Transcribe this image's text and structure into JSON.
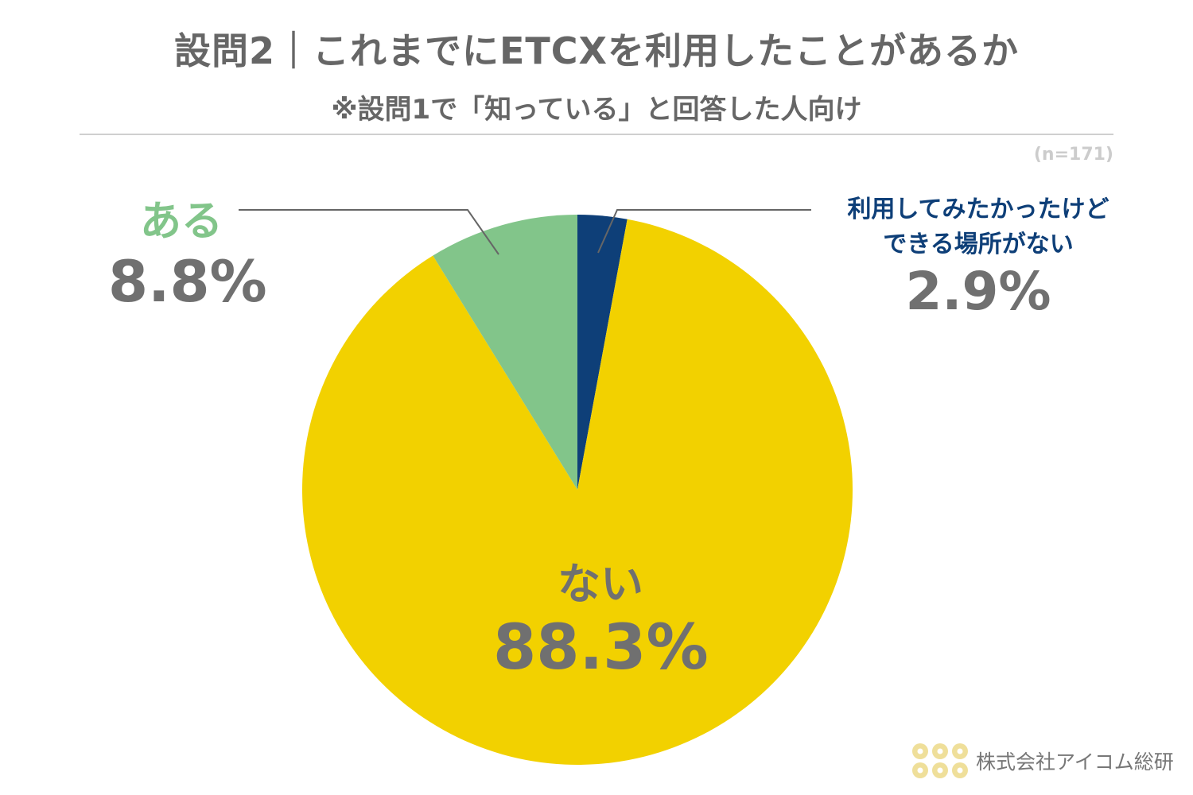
{
  "header": {
    "title": "設問2｜これまでにETCXを利用したことがあるか",
    "subtitle": "※設問1で「知っている」と回答した人向け",
    "sample_size": "(n=171)"
  },
  "chart_data": {
    "type": "pie",
    "title": "設問2｜これまでにETCXを利用したことがあるか",
    "subtitle": "※設問1で「知っている」と回答した人向け",
    "n": 171,
    "slices": [
      {
        "name": "利用してみたかったけどできる場所がない",
        "value": 2.9,
        "value_label": "2.9%",
        "color": "#0e3f78"
      },
      {
        "name": "ない",
        "value": 88.3,
        "value_label": "88.3%",
        "color": "#f2d100"
      },
      {
        "name": "ある",
        "value": 8.8,
        "value_label": "8.8%",
        "color": "#82c58a"
      }
    ]
  },
  "labels": {
    "aru": {
      "name": "ある",
      "pct": "8.8%"
    },
    "nai": {
      "name": "ない",
      "pct": "88.3%"
    },
    "want": {
      "name_line1": "利用してみたかったけど",
      "name_line2": "できる場所がない",
      "pct": "2.9%"
    }
  },
  "brand": {
    "name": "株式会社アイコム総研",
    "logo_color": "#efdf9a"
  }
}
